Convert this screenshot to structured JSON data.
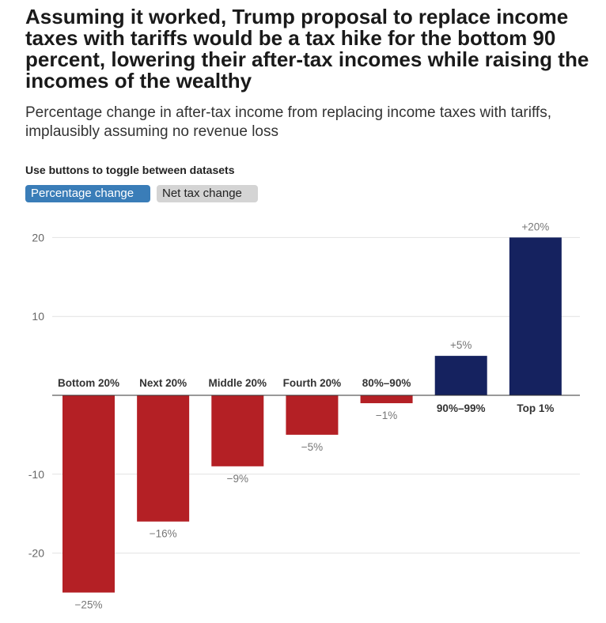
{
  "title": "Assuming it worked, Trump proposal to replace income taxes with tariffs would be a tax hike for the bottom 90 percent, lowering their after-tax incomes while raising the incomes of the wealthy",
  "subtitle": "Percentage change in after-tax income from replacing income taxes with tariffs, implausibly assuming no revenue loss",
  "toggle": {
    "label": "Use buttons to toggle between datasets",
    "buttons": [
      "Percentage change",
      "Net tax change"
    ],
    "active": "Percentage change"
  },
  "colors": {
    "negative": "#b42025",
    "positive": "#15225f",
    "active_button": "#3a7db8",
    "inactive_button": "#d4d4d4"
  },
  "chart_data": {
    "type": "bar",
    "categories": [
      "Bottom 20%",
      "Next 20%",
      "Middle 20%",
      "Fourth 20%",
      "80%–90%",
      "90%–99%",
      "Top 1%"
    ],
    "values": [
      -25,
      -16,
      -9,
      -5,
      -1,
      5,
      20
    ],
    "data_labels": [
      "−25%",
      "−16%",
      "−9%",
      "−5%",
      "−1%",
      "+5%",
      "+20%"
    ],
    "y_ticks": [
      20,
      10,
      -10,
      -20
    ],
    "y_tick_labels": [
      "20",
      "10",
      "-10",
      "-20"
    ],
    "ylim": [
      -27,
      22
    ],
    "grid": true,
    "legend": "none"
  }
}
